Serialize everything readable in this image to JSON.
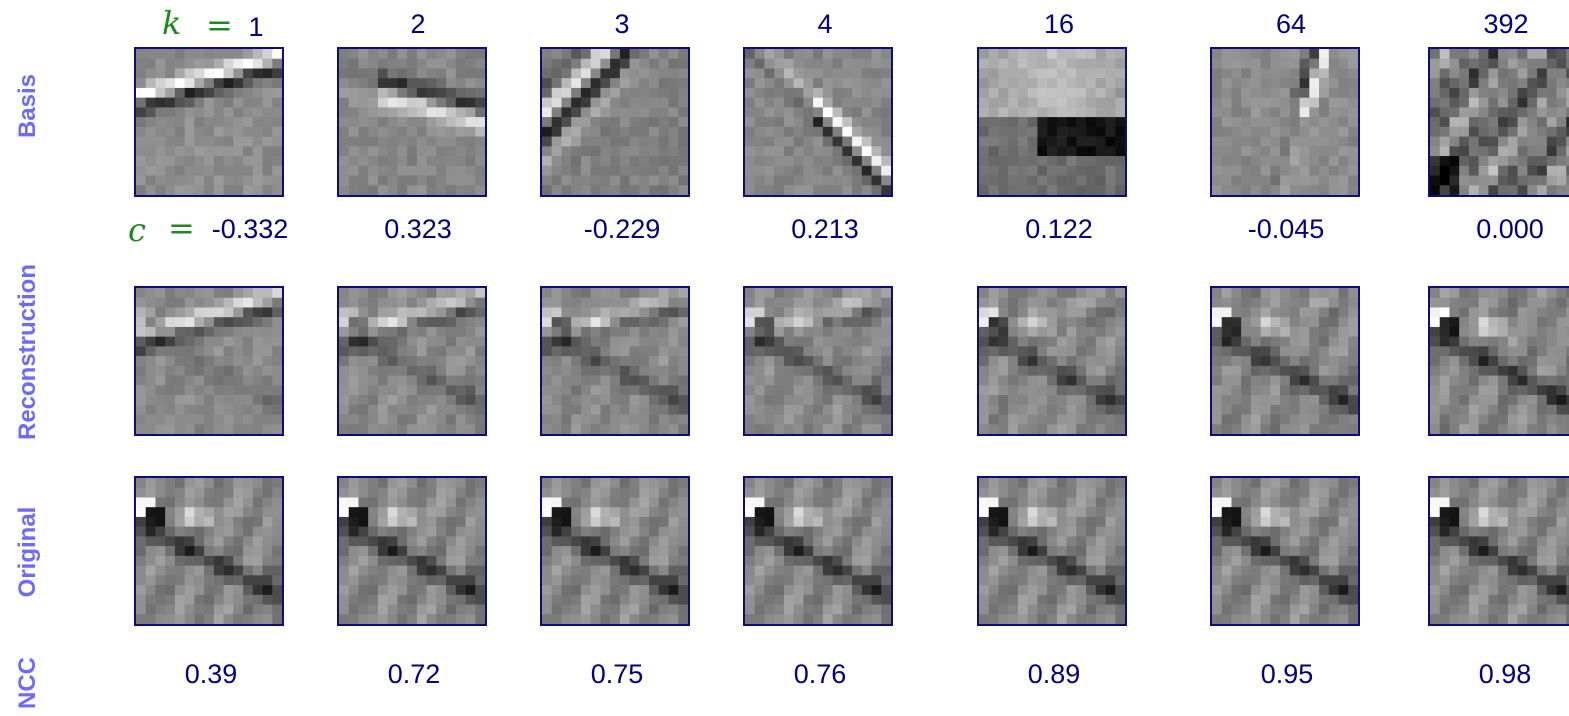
{
  "row_labels": {
    "basis": "Basis",
    "reconstruction": "Reconstruction",
    "original": "Original",
    "ncc": "NCC"
  },
  "k_symbol": "k",
  "c_symbol": "c",
  "equals": "=",
  "k_values": [
    "1",
    "2",
    "3",
    "4",
    "16",
    "64",
    "392"
  ],
  "c_values": [
    "-0.332",
    "0.323",
    "-0.229",
    "0.213",
    "0.122",
    "-0.045",
    "0.000"
  ],
  "ncc_values": [
    "0.39",
    "0.72",
    "0.75",
    "0.76",
    "0.89",
    "0.95",
    "0.98"
  ],
  "colors": {
    "label": "#6b6bff",
    "number": "#000080",
    "symbol": "#1b8a1b",
    "border": "#0c0c7a"
  }
}
